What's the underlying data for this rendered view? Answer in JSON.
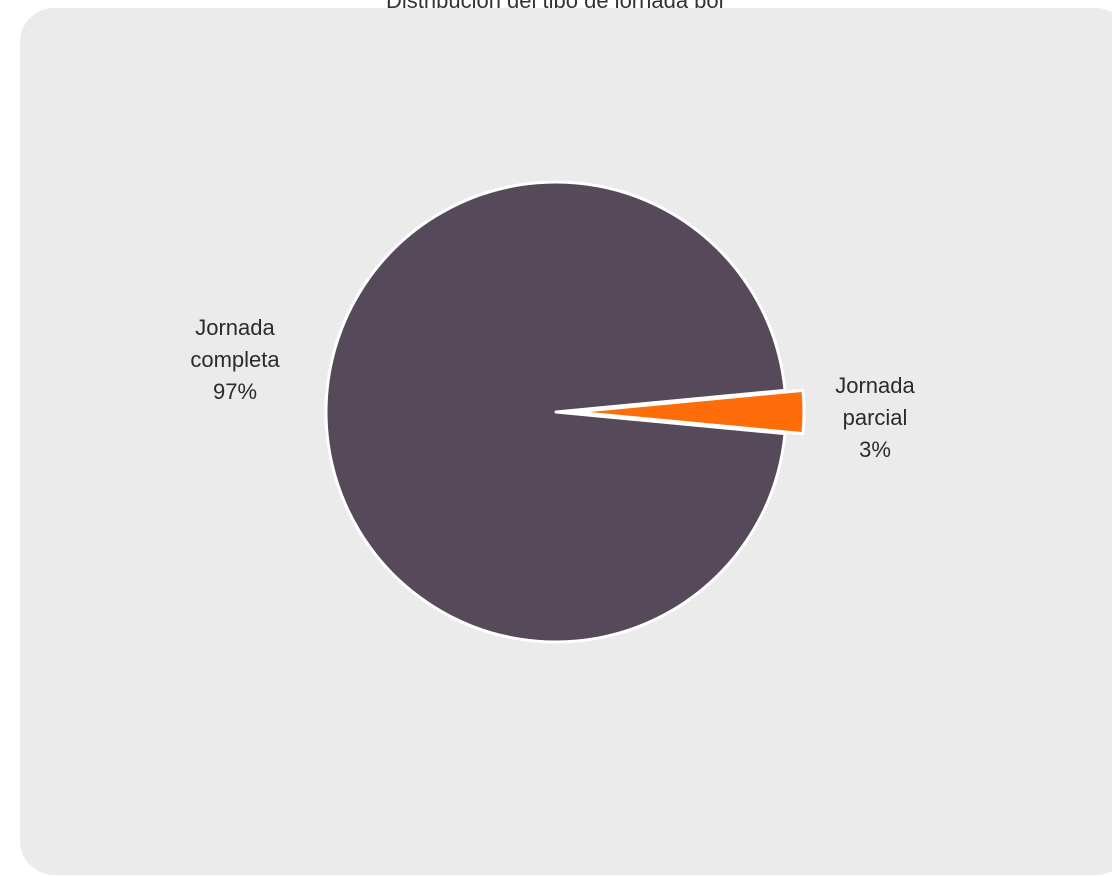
{
  "chart_data": {
    "type": "pie",
    "title": "Distribución del tipo de jornada por",
    "slices": [
      {
        "name": "Jornada completa",
        "label_lines": [
          "Jornada",
          "completa"
        ],
        "value": 97,
        "value_label": "97%",
        "color": "#56495a"
      },
      {
        "name": "Jornada parcial",
        "label_lines": [
          "Jornada",
          "parcial"
        ],
        "value": 3,
        "value_label": "3%",
        "color": "#ff6d0a"
      }
    ],
    "legend": "none",
    "background": "#ebebeb"
  }
}
